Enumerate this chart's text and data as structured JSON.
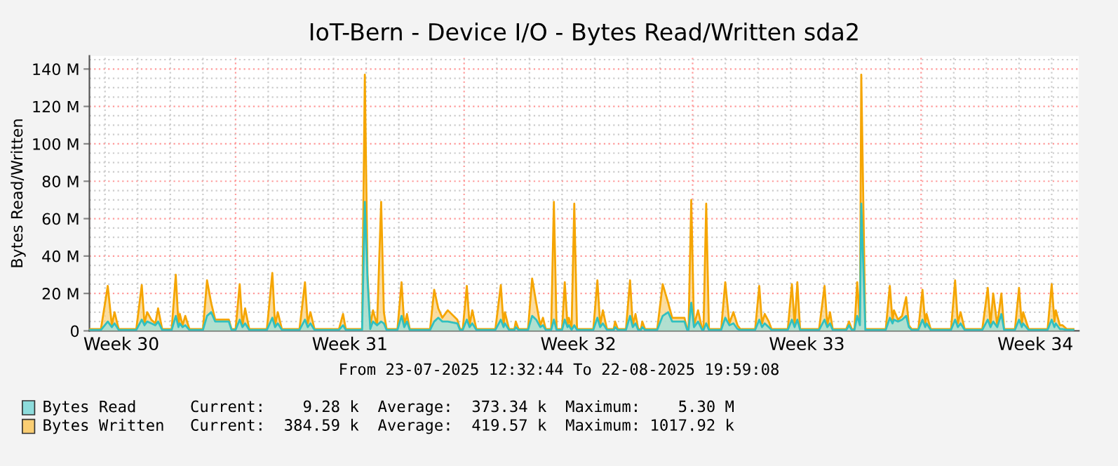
{
  "chart_data": {
    "type": "area",
    "title": "IoT-Bern - Device I/O - Bytes Read/Written sda2",
    "ylabel": "Bytes Read/Written",
    "x": [
      "2025-07-23T12:32",
      "2025-07-23T21:00",
      "2025-07-24T02:00",
      "2025-07-24T05:00",
      "2025-07-24T07:00",
      "2025-07-24T10:00",
      "2025-07-24T23:00",
      "2025-07-25T03:00",
      "2025-07-25T05:00",
      "2025-07-25T07:00",
      "2025-07-25T10:00",
      "2025-07-25T13:00",
      "2025-07-25T15:00",
      "2025-07-25T18:00",
      "2025-07-26T01:00",
      "2025-07-26T04:00",
      "2025-07-26T06:00",
      "2025-07-26T07:00",
      "2025-07-26T09:00",
      "2025-07-26T11:00",
      "2025-07-26T14:00",
      "2025-07-27T00:00",
      "2025-07-27T03:00",
      "2025-07-27T06:00",
      "2025-07-27T09:00",
      "2025-07-27T19:00",
      "2025-07-27T21:00",
      "2025-07-28T00:00",
      "2025-07-28T03:00",
      "2025-07-28T05:00",
      "2025-07-28T07:00",
      "2025-07-28T10:00",
      "2025-07-28T23:00",
      "2025-07-29T03:00",
      "2025-07-29T05:00",
      "2025-07-29T07:00",
      "2025-07-29T10:00",
      "2025-07-29T23:00",
      "2025-07-30T03:00",
      "2025-07-30T05:00",
      "2025-07-30T07:00",
      "2025-07-30T10:00",
      "2025-07-31T04:00",
      "2025-07-31T07:00",
      "2025-07-31T09:00",
      "2025-07-31T21:00",
      "2025-07-31T23:00",
      "2025-08-01T01:00",
      "2025-08-01T03:00",
      "2025-08-01T05:00",
      "2025-08-01T08:00",
      "2025-08-01T11:00",
      "2025-08-01T13:00",
      "2025-08-01T15:00",
      "2025-08-01T23:00",
      "2025-08-02T02:00",
      "2025-08-02T04:00",
      "2025-08-02T06:00",
      "2025-08-02T08:00",
      "2025-08-02T23:00",
      "2025-08-03T02:00",
      "2025-08-03T05:00",
      "2025-08-03T08:00",
      "2025-08-03T12:00",
      "2025-08-03T19:00",
      "2025-08-03T21:00",
      "2025-08-03T23:00",
      "2025-08-04T02:00",
      "2025-08-04T04:00",
      "2025-08-04T06:00",
      "2025-08-04T09:00",
      "2025-08-04T23:00",
      "2025-08-05T03:00",
      "2025-08-05T05:00",
      "2025-08-05T06:00",
      "2025-08-05T09:00",
      "2025-08-05T13:00",
      "2025-08-05T14:00",
      "2025-08-05T16:00",
      "2025-08-05T23:00",
      "2025-08-06T02:00",
      "2025-08-06T05:00",
      "2025-08-06T08:00",
      "2025-08-06T10:00",
      "2025-08-06T12:00",
      "2025-08-06T16:00",
      "2025-08-06T18:00",
      "2025-08-06T20:00",
      "2025-08-07T00:00",
      "2025-08-07T02:00",
      "2025-08-07T04:00",
      "2025-08-07T05:00",
      "2025-08-07T07:00",
      "2025-08-07T09:00",
      "2025-08-07T11:00",
      "2025-08-07T23:00",
      "2025-08-08T02:00",
      "2025-08-08T04:00",
      "2025-08-08T06:00",
      "2025-08-08T09:00",
      "2025-08-08T14:00",
      "2025-08-08T15:00",
      "2025-08-08T17:00",
      "2025-08-08T23:00",
      "2025-08-09T02:00",
      "2025-08-09T04:00",
      "2025-08-09T06:00",
      "2025-08-09T08:00",
      "2025-08-09T10:00",
      "2025-08-09T11:00",
      "2025-08-09T13:00",
      "2025-08-09T22:00",
      "2025-08-10T02:00",
      "2025-08-10T06:00",
      "2025-08-10T09:00",
      "2025-08-10T18:00",
      "2025-08-10T20:00",
      "2025-08-10T21:00",
      "2025-08-10T23:00",
      "2025-08-11T01:00",
      "2025-08-11T04:00",
      "2025-08-11T07:00",
      "2025-08-11T08:00",
      "2025-08-11T10:00",
      "2025-08-11T12:00",
      "2025-08-11T21:00",
      "2025-08-12T00:00",
      "2025-08-12T03:00",
      "2025-08-12T06:00",
      "2025-08-12T09:00",
      "2025-08-12T11:00",
      "2025-08-12T22:00",
      "2025-08-13T01:00",
      "2025-08-13T03:00",
      "2025-08-13T05:00",
      "2025-08-13T08:00",
      "2025-08-13T10:00",
      "2025-08-13T22:00",
      "2025-08-14T01:00",
      "2025-08-14T03:00",
      "2025-08-14T05:00",
      "2025-08-14T07:00",
      "2025-08-14T21:00",
      "2025-08-15T01:00",
      "2025-08-15T03:00",
      "2025-08-15T05:00",
      "2025-08-15T07:00",
      "2025-08-15T17:00",
      "2025-08-15T19:00",
      "2025-08-15T21:00",
      "2025-08-15T23:00",
      "2025-08-16T01:00",
      "2025-08-16T03:00",
      "2025-08-16T04:00",
      "2025-08-16T07:00",
      "2025-08-16T22:00",
      "2025-08-17T01:00",
      "2025-08-17T03:00",
      "2025-08-17T04:00",
      "2025-08-17T07:00",
      "2025-08-17T10:00",
      "2025-08-17T13:00",
      "2025-08-17T15:00",
      "2025-08-17T17:00",
      "2025-08-17T22:00",
      "2025-08-18T01:00",
      "2025-08-18T03:00",
      "2025-08-18T04:00",
      "2025-08-18T07:00",
      "2025-08-18T22:00",
      "2025-08-19T01:00",
      "2025-08-19T03:00",
      "2025-08-19T05:00",
      "2025-08-19T08:00",
      "2025-08-19T21:00",
      "2025-08-20T01:00",
      "2025-08-20T03:00",
      "2025-08-20T05:00",
      "2025-08-20T08:00",
      "2025-08-20T11:00",
      "2025-08-20T13:00",
      "2025-08-20T21:00",
      "2025-08-21T00:00",
      "2025-08-21T02:00",
      "2025-08-21T03:00",
      "2025-08-21T07:00",
      "2025-08-21T21:00",
      "2025-08-22T00:00",
      "2025-08-22T02:00",
      "2025-08-22T03:00",
      "2025-08-22T06:00",
      "2025-08-22T08:00",
      "2025-08-22T11:00",
      "2025-08-22T16:00"
    ],
    "series": [
      {
        "name": "Bytes Written",
        "color": "#f5a500",
        "values": [
          1,
          1,
          24,
          3,
          10,
          1,
          1,
          24.5,
          4,
          10,
          6,
          4,
          12,
          1,
          1,
          30,
          3,
          9,
          3,
          8,
          1,
          1,
          27,
          15,
          6,
          6,
          1,
          1,
          25,
          3,
          12,
          1,
          1,
          31,
          3,
          10,
          1,
          1,
          26,
          4,
          10,
          1,
          1,
          9,
          1,
          1,
          137,
          30,
          3,
          11,
          3,
          69,
          10,
          1,
          1,
          26,
          3,
          9,
          1,
          1,
          22,
          12,
          7,
          11,
          6,
          1,
          1,
          24,
          3,
          11,
          1,
          1,
          24.5,
          3,
          10,
          1,
          1,
          5,
          1,
          1,
          28,
          15,
          3,
          7,
          1,
          1,
          69,
          1,
          1,
          26,
          3,
          7,
          1,
          68,
          1,
          1,
          27,
          3,
          11,
          1,
          1,
          5,
          1,
          1,
          27,
          3,
          9,
          1,
          1,
          5,
          1,
          1,
          25,
          15,
          7,
          7,
          1,
          1,
          70,
          3,
          11,
          1,
          1,
          68,
          1,
          1,
          26,
          4,
          10,
          3,
          1,
          1,
          24,
          4,
          9,
          5,
          1,
          1,
          25,
          3,
          26,
          1,
          1,
          24,
          3,
          10,
          1,
          1,
          5,
          1,
          1,
          26,
          5,
          137,
          1,
          1,
          24,
          5,
          11,
          6,
          8,
          18,
          3,
          1,
          1,
          22,
          4,
          9,
          1,
          1,
          27,
          4,
          10,
          1,
          1,
          23,
          3,
          20,
          3,
          20,
          1,
          1,
          23,
          3,
          10,
          1,
          1,
          25,
          5,
          11,
          3,
          3,
          1,
          1
        ]
      },
      {
        "name": "Bytes Read",
        "color": "#30c0c0",
        "values": [
          0.5,
          0.5,
          5,
          2,
          4,
          0.5,
          0.5,
          6,
          3,
          5,
          4,
          3,
          5,
          0.5,
          0.5,
          8,
          2,
          4,
          2,
          3,
          0.5,
          0.5,
          8,
          10,
          5,
          5,
          0.5,
          0.5,
          6,
          2,
          4,
          0.5,
          0.5,
          7,
          2,
          4,
          0.5,
          0.5,
          6,
          2,
          4,
          0.5,
          0.5,
          3,
          0.5,
          0.5,
          69,
          27,
          1,
          5,
          3,
          5,
          4,
          0.5,
          0.5,
          8,
          2,
          5,
          0.5,
          0.5,
          5,
          7,
          5,
          5,
          4,
          0.5,
          0.5,
          6,
          2,
          4,
          0.5,
          0.5,
          6,
          2,
          4,
          0.5,
          0.5,
          2,
          0.5,
          0.5,
          8,
          6,
          2,
          3,
          0.5,
          0.5,
          6,
          0.5,
          0.5,
          6,
          2,
          3,
          0.5,
          3,
          0.5,
          0.5,
          7,
          2,
          4,
          0.5,
          0.5,
          2,
          0.5,
          0.5,
          8,
          2,
          4,
          0.5,
          0.5,
          2,
          0.5,
          0.5,
          8,
          10,
          5,
          5,
          0.5,
          0.5,
          15,
          2,
          5,
          0.5,
          0.5,
          4,
          0.5,
          0.5,
          7,
          3,
          4,
          1,
          0.5,
          0.5,
          6,
          2,
          4,
          2,
          0.5,
          0.5,
          6,
          2,
          6,
          0.5,
          0.5,
          6,
          2,
          4,
          0.5,
          0.5,
          3,
          0.5,
          0.5,
          8,
          3,
          68,
          0.5,
          0.5,
          7,
          4,
          6,
          5,
          6,
          8,
          2,
          0.5,
          0.5,
          6,
          2,
          4,
          0.5,
          0.5,
          6,
          2,
          4,
          0.5,
          0.5,
          6,
          2,
          5,
          2,
          9,
          0.5,
          0.5,
          6,
          2,
          4,
          0.5,
          0.5,
          6,
          2,
          4,
          1,
          1,
          0.5,
          0.5
        ]
      }
    ],
    "xlim": [
      "2025-07-23T12:32",
      "2025-08-22T19:59"
    ],
    "xticks": [
      {
        "value": "2025-07-24T12:00",
        "label": "Week 30"
      },
      {
        "value": "2025-07-31T12:00",
        "label": "Week 31"
      },
      {
        "value": "2025-08-07T12:00",
        "label": "Week 32"
      },
      {
        "value": "2025-08-14T12:00",
        "label": "Week 33"
      },
      {
        "value": "2025-08-21T12:00",
        "label": "Week 34"
      }
    ],
    "ylim": [
      0,
      147
    ],
    "yticks": [
      {
        "value": 0,
        "label": "0"
      },
      {
        "value": 20,
        "label": "20 M"
      },
      {
        "value": 40,
        "label": "40 M"
      },
      {
        "value": 60,
        "label": "60 M"
      },
      {
        "value": 80,
        "label": "80 M"
      },
      {
        "value": 100,
        "label": "100 M"
      },
      {
        "value": 120,
        "label": "120 M"
      },
      {
        "value": 140,
        "label": "140 M"
      }
    ],
    "grid": true,
    "legend": "bottom",
    "annotations": [
      "From 23-07-2025 12:32:44 To 22-08-2025 19:59:08",
      "Current:    9.28 k  Average:  373.34 k  Maximum:    5.30 M",
      "Current:  384.59 k  Average:  419.57 k  Maximum: 1017.92 k"
    ]
  }
}
